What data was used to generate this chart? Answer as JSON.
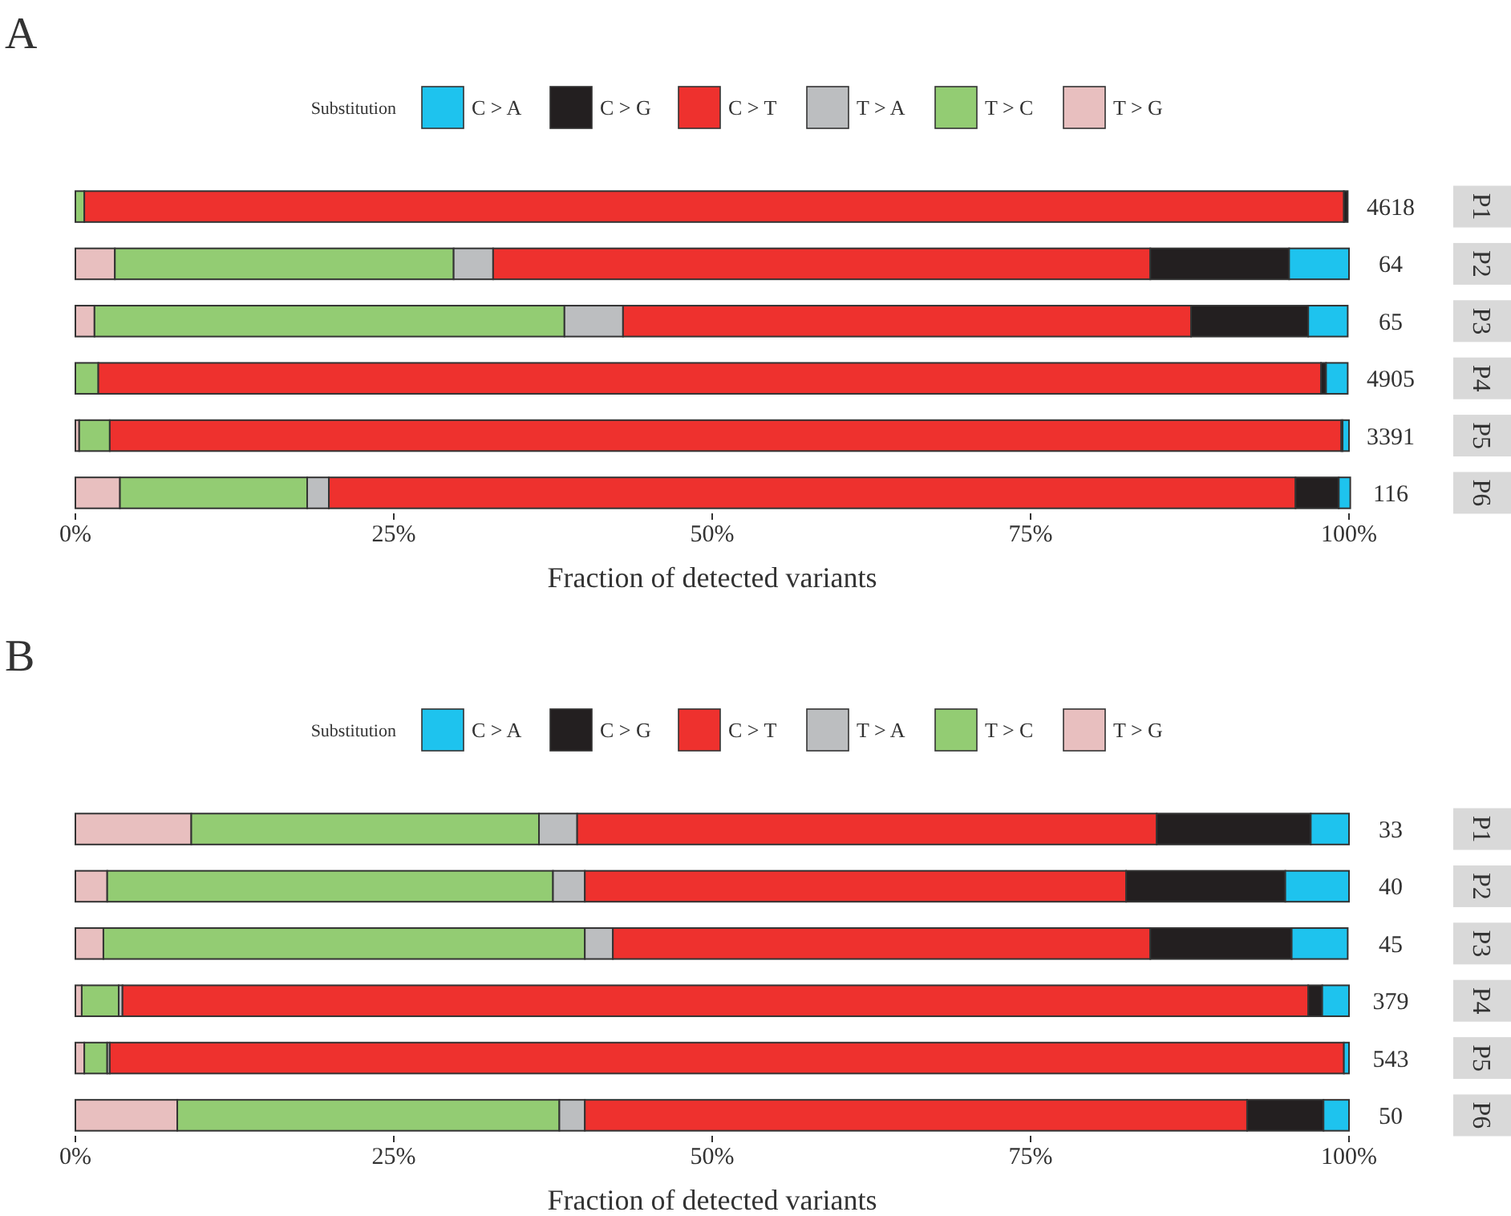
{
  "chart_data": [
    {
      "type": "bar",
      "title": "A",
      "orientation": "horizontal",
      "stacked": true,
      "legend": "top",
      "legend_title": "Substitution",
      "xlabel": "Fraction of detected variants",
      "categories": [
        "P1",
        "P2",
        "P3",
        "P4",
        "P5",
        "P6"
      ],
      "xlim": [
        0,
        100
      ],
      "xticks": [
        {
          "value": 0,
          "label": "0%"
        },
        {
          "value": 25,
          "label": "25%"
        },
        {
          "value": 50,
          "label": "50%"
        },
        {
          "value": 75,
          "label": "75%"
        },
        {
          "value": 100,
          "label": "100%"
        }
      ],
      "series": [
        {
          "name": "T > G",
          "color": "#e8bfbf",
          "values": [
            0,
            3.1,
            1.5,
            0,
            0.3,
            3.5
          ]
        },
        {
          "name": "T > C",
          "color": "#93cc73",
          "values": [
            0.7,
            26.6,
            36.9,
            1.8,
            2.4,
            14.7
          ]
        },
        {
          "name": "T > A",
          "color": "#bcbec0",
          "values": [
            0,
            3.1,
            4.6,
            0,
            0,
            1.7
          ]
        },
        {
          "name": "C > T",
          "color": "#ee312e",
          "values": [
            98.9,
            51.6,
            44.6,
            96.0,
            96.7,
            75.9
          ]
        },
        {
          "name": "C > G",
          "color": "#231f20",
          "values": [
            0.3,
            10.9,
            9.2,
            0.4,
            0.1,
            3.4
          ]
        },
        {
          "name": "C > A",
          "color": "#1ec3ee",
          "values": [
            0,
            4.7,
            3.1,
            1.7,
            0.5,
            0.9
          ]
        }
      ],
      "annotations": [
        "4618",
        "64",
        "65",
        "4905",
        "3391",
        "116"
      ]
    },
    {
      "type": "bar",
      "title": "B",
      "orientation": "horizontal",
      "stacked": true,
      "legend": "top",
      "legend_title": "Substitution",
      "xlabel": "Fraction of detected variants",
      "categories": [
        "P1",
        "P2",
        "P3",
        "P4",
        "P5",
        "P6"
      ],
      "xlim": [
        0,
        100
      ],
      "xticks": [
        {
          "value": 0,
          "label": "0%"
        },
        {
          "value": 25,
          "label": "25%"
        },
        {
          "value": 50,
          "label": "50%"
        },
        {
          "value": 75,
          "label": "75%"
        },
        {
          "value": 100,
          "label": "100%"
        }
      ],
      "series": [
        {
          "name": "T > G",
          "color": "#e8bfbf",
          "values": [
            9.1,
            2.5,
            2.2,
            0.5,
            0.7,
            8
          ]
        },
        {
          "name": "T > C",
          "color": "#93cc73",
          "values": [
            27.3,
            35,
            37.8,
            2.9,
            1.8,
            30
          ]
        },
        {
          "name": "T > A",
          "color": "#bcbec0",
          "values": [
            3.0,
            2.5,
            2.2,
            0.3,
            0.2,
            2
          ]
        },
        {
          "name": "C > T",
          "color": "#ee312e",
          "values": [
            45.5,
            42.5,
            42.2,
            93.1,
            96.9,
            52
          ]
        },
        {
          "name": "C > G",
          "color": "#231f20",
          "values": [
            12.1,
            12.5,
            11.1,
            1.1,
            0,
            6
          ]
        },
        {
          "name": "C > A",
          "color": "#1ec3ee",
          "values": [
            3.0,
            5,
            4.4,
            2.1,
            0.4,
            2
          ]
        }
      ],
      "annotations": [
        "33",
        "40",
        "45",
        "379",
        "543",
        "50"
      ]
    }
  ]
}
